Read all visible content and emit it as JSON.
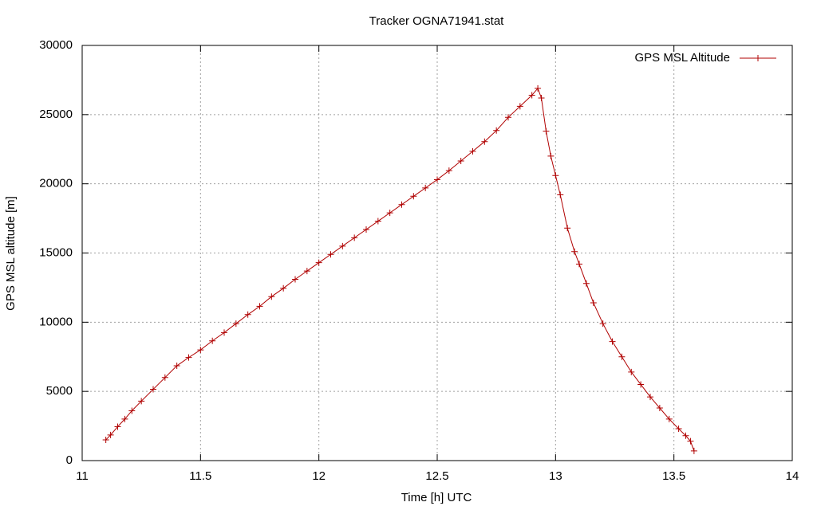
{
  "chart_data": {
    "type": "line",
    "title": "Tracker OGNA71941.stat",
    "x_label": "Time [h] UTC",
    "y_label": "GPS MSL altitude [m]",
    "x": [
      11.1,
      11.12,
      11.15,
      11.18,
      11.21,
      11.25,
      11.3,
      11.35,
      11.4,
      11.45,
      11.5,
      11.55,
      11.6,
      11.65,
      11.7,
      11.75,
      11.8,
      11.85,
      11.9,
      11.95,
      12.0,
      12.05,
      12.1,
      12.15,
      12.2,
      12.25,
      12.3,
      12.35,
      12.4,
      12.45,
      12.5,
      12.55,
      12.6,
      12.65,
      12.7,
      12.75,
      12.8,
      12.85,
      12.9,
      12.925,
      12.94,
      12.96,
      12.98,
      13.0,
      13.02,
      13.05,
      13.08,
      13.1,
      13.13,
      13.16,
      13.2,
      13.24,
      13.28,
      13.32,
      13.36,
      13.4,
      13.44,
      13.48,
      13.52,
      13.55,
      13.57,
      13.585
    ],
    "series": [
      {
        "name": "GPS MSL Altitude",
        "color": "#b00000",
        "values": [
          1500,
          1850,
          2450,
          3000,
          3600,
          4300,
          5150,
          6000,
          6850,
          7450,
          8000,
          8650,
          9250,
          9900,
          10550,
          11150,
          11850,
          12450,
          13100,
          13700,
          14300,
          14900,
          15500,
          16100,
          16700,
          17300,
          17900,
          18500,
          19100,
          19700,
          20300,
          20950,
          21650,
          22350,
          23050,
          23850,
          24800,
          25600,
          26400,
          26900,
          26200,
          23800,
          22000,
          20600,
          19200,
          16800,
          15100,
          14200,
          12800,
          11400,
          9900,
          8600,
          7500,
          6400,
          5500,
          4600,
          3800,
          3000,
          2300,
          1800,
          1400,
          700
        ]
      }
    ],
    "xlim": [
      11,
      14
    ],
    "xticks": [
      11,
      11.5,
      12,
      12.5,
      13,
      13.5,
      14
    ],
    "ylim": [
      0,
      30000
    ],
    "yticks": [
      0,
      5000,
      10000,
      15000,
      20000,
      25000,
      30000
    ],
    "grid": true,
    "legend": "top right"
  }
}
